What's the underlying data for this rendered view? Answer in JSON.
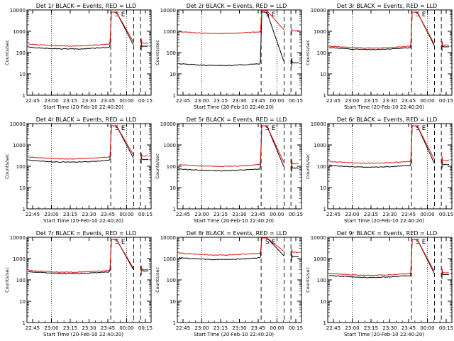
{
  "chart_data": [
    {
      "type": "line",
      "title": "Det 1r BLACK = Events, RED = LLD",
      "xlabel": "Start Time (20-Feb-10 22:40:20)",
      "ylabel": "Counts/sec",
      "ylog": true,
      "ylim": [
        1,
        10000
      ],
      "y_ticks": [
        "1",
        "10",
        "100",
        "1000",
        "10000"
      ],
      "x_ticks": [
        "22:45",
        "23:00",
        "23:15",
        "23:30",
        "23:45",
        "00:00",
        "00:15"
      ],
      "markers": [
        "S",
        "E"
      ],
      "series": [
        {
          "color": "#000000",
          "base": 180,
          "step": 230
        },
        {
          "color": "#e01010",
          "base": 250,
          "step": 320
        }
      ]
    },
    {
      "type": "line",
      "title": "Det 2r BLACK = Events, RED = LLD",
      "xlabel": "Start Time (20-Feb-10 22:40:20)",
      "ylabel": "Counts/sec",
      "ylog": true,
      "ylim": [
        1,
        10000
      ],
      "y_ticks": [
        "1",
        "10",
        "100",
        "1000",
        "10000"
      ],
      "x_ticks": [
        "22:45",
        "23:00",
        "23:15",
        "23:30",
        "23:45",
        "00:00",
        "00:15"
      ],
      "markers": [
        "S",
        "E"
      ],
      "series": [
        {
          "color": "#000000",
          "base": 30,
          "step": 40
        },
        {
          "color": "#e01010",
          "base": 950,
          "step": 900
        }
      ]
    },
    {
      "type": "line",
      "title": "Det 3r BLACK = Events, RED = LLD",
      "xlabel": "Start Time (20-Feb-10 22:40:20)",
      "ylabel": "Counts/sec",
      "ylog": true,
      "ylim": [
        1,
        10000
      ],
      "y_ticks": [
        "1",
        "10",
        "100",
        "1000",
        "10000"
      ],
      "x_ticks": [
        "22:45",
        "23:00",
        "23:15",
        "23:30",
        "23:45",
        "00:00",
        "00:15"
      ],
      "markers": [
        "S",
        "E"
      ],
      "series": [
        {
          "color": "#000000",
          "base": 170,
          "step": 200
        },
        {
          "color": "#e01010",
          "base": 200,
          "step": 240
        }
      ]
    },
    {
      "type": "line",
      "title": "Det 4r BLACK = Events, RED = LLD",
      "xlabel": "Start Time (20-Feb-10 22:40:20)",
      "ylabel": "Counts/sec",
      "ylog": true,
      "ylim": [
        1,
        10000
      ],
      "y_ticks": [
        "1",
        "10",
        "100",
        "1000",
        "10000"
      ],
      "x_ticks": [
        "22:45",
        "23:00",
        "23:15",
        "23:30",
        "23:45",
        "00:00",
        "00:15"
      ],
      "markers": [
        "S",
        "E"
      ],
      "series": [
        {
          "color": "#000000",
          "base": 190,
          "step": 220
        },
        {
          "color": "#e01010",
          "base": 270,
          "step": 300
        }
      ]
    },
    {
      "type": "line",
      "title": "Det 5r BLACK = Events, RED = LLD",
      "xlabel": "Start Time (20-Feb-10 22:40:20)",
      "ylabel": "Counts/sec",
      "ylog": true,
      "ylim": [
        1,
        10000
      ],
      "y_ticks": [
        "1",
        "10",
        "100",
        "1000",
        "10000"
      ],
      "x_ticks": [
        "22:45",
        "23:00",
        "23:15",
        "23:30",
        "23:45",
        "00:00",
        "00:15"
      ],
      "markers": [
        "S",
        "E"
      ],
      "series": [
        {
          "color": "#000000",
          "base": 75,
          "step": 100
        },
        {
          "color": "#e01010",
          "base": 120,
          "step": 150
        }
      ]
    },
    {
      "type": "line",
      "title": "Det 6r BLACK = Events, RED = LLD",
      "xlabel": "Start Time (20-Feb-10 22:40:20)",
      "ylabel": "Counts/sec",
      "ylog": true,
      "ylim": [
        1,
        10000
      ],
      "y_ticks": [
        "1",
        "10",
        "100",
        "1000",
        "10000"
      ],
      "x_ticks": [
        "22:45",
        "23:00",
        "23:15",
        "23:30",
        "23:45",
        "00:00",
        "00:15"
      ],
      "markers": [
        "S",
        "E"
      ],
      "series": [
        {
          "color": "#000000",
          "base": 110,
          "step": 130
        },
        {
          "color": "#e01010",
          "base": 170,
          "step": 200
        }
      ]
    },
    {
      "type": "line",
      "title": "Det 7r BLACK = Events, RED = LLD",
      "xlabel": "Start Time (20-Feb-10 22:40:20)",
      "ylabel": "Counts/sec",
      "ylog": true,
      "ylim": [
        1,
        10000
      ],
      "y_ticks": [
        "1",
        "10",
        "100",
        "1000",
        "10000"
      ],
      "x_ticks": [
        "22:45",
        "23:00",
        "23:15",
        "23:30",
        "23:45",
        "00:00",
        "00:15"
      ],
      "markers": [
        "S",
        "E"
      ],
      "series": [
        {
          "color": "#000000",
          "base": 240,
          "step": 280
        },
        {
          "color": "#e01010",
          "base": 280,
          "step": 330
        }
      ]
    },
    {
      "type": "line",
      "title": "Det 8r BLACK = Events, RED = LLD",
      "xlabel": "Start Time (20-Feb-10 22:40:20)",
      "ylabel": "Counts/sec",
      "ylog": true,
      "ylim": [
        1,
        10000
      ],
      "y_ticks": [
        "1",
        "10",
        "100",
        "1000",
        "10000"
      ],
      "x_ticks": [
        "22:45",
        "23:00",
        "23:15",
        "23:30",
        "23:45",
        "00:00",
        "00:15"
      ],
      "markers": [
        "S",
        "E"
      ],
      "series": [
        {
          "color": "#000000",
          "base": 1100,
          "step": 1200
        },
        {
          "color": "#e01010",
          "base": 1800,
          "step": 2000
        }
      ]
    },
    {
      "type": "line",
      "title": "Det 9r BLACK = Events, RED = LLD",
      "xlabel": "Start Time (20-Feb-10 22:40:20)",
      "ylabel": "Counts/sec",
      "ylog": true,
      "ylim": [
        1,
        10000
      ],
      "y_ticks": [
        "1",
        "10",
        "100",
        "1000",
        "10000"
      ],
      "x_ticks": [
        "22:45",
        "23:00",
        "23:15",
        "23:30",
        "23:45",
        "00:00",
        "00:15"
      ],
      "markers": [
        "S",
        "E"
      ],
      "series": [
        {
          "color": "#000000",
          "base": 160,
          "step": 190
        },
        {
          "color": "#e01010",
          "base": 200,
          "step": 230
        }
      ]
    }
  ]
}
